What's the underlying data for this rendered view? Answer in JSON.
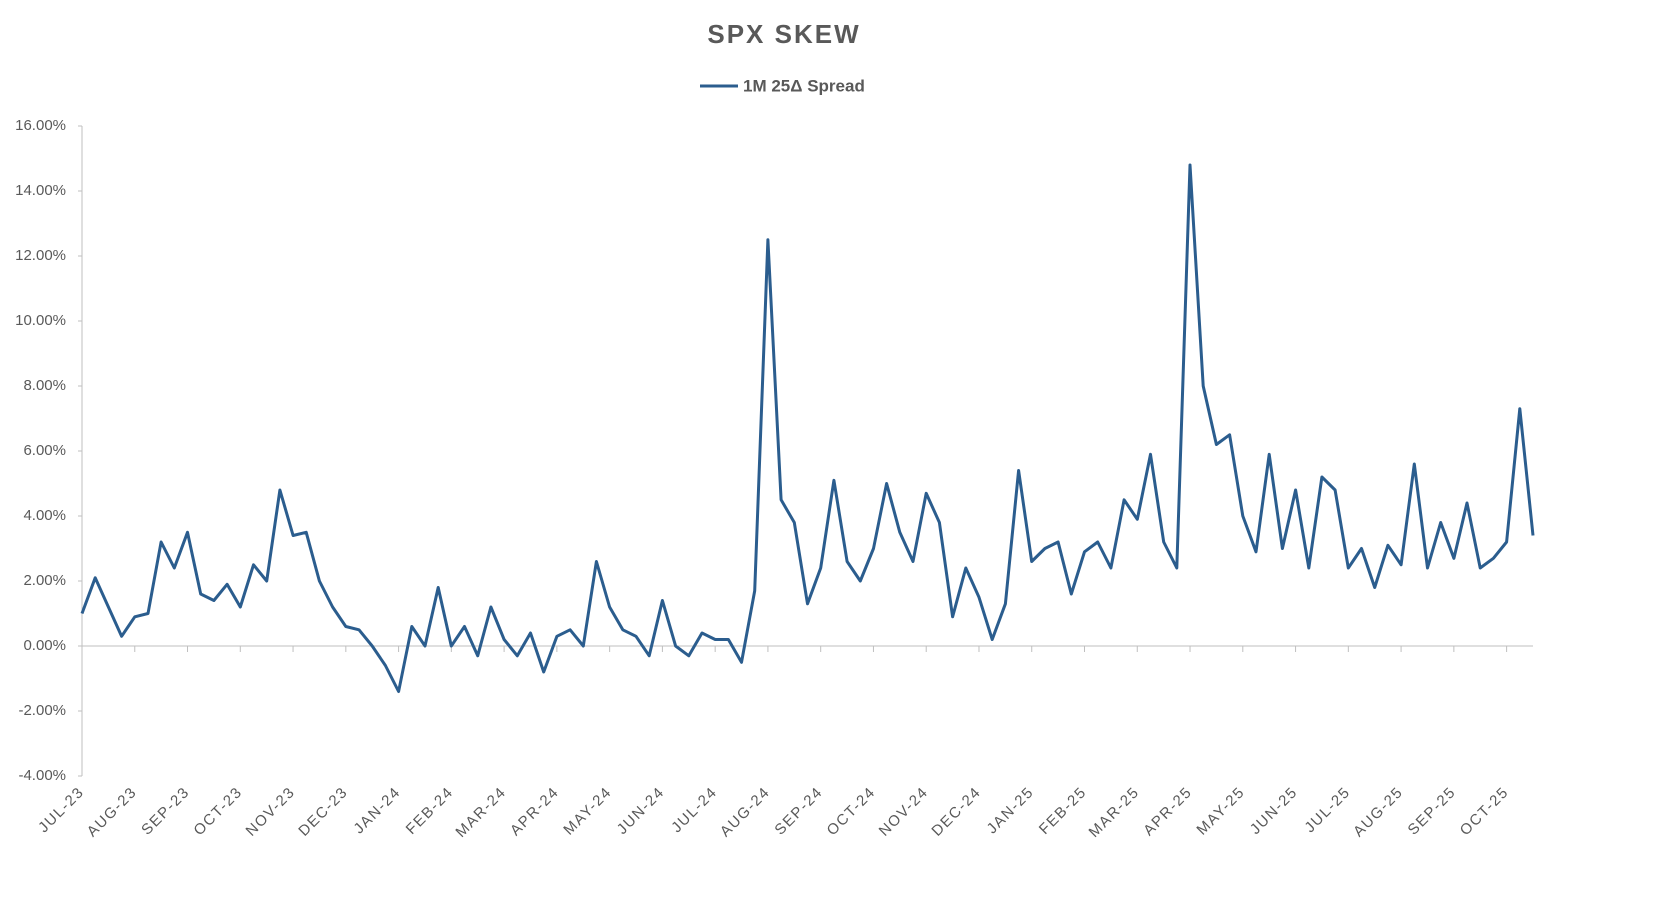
{
  "chart_data": {
    "type": "line",
    "title": "SPX SKEW",
    "categories": [
      "JUL-23",
      null,
      null,
      null,
      "AUG-23",
      null,
      null,
      null,
      "SEP-23",
      null,
      null,
      null,
      "OCT-23",
      null,
      null,
      null,
      "NOV-23",
      null,
      null,
      null,
      "DEC-23",
      null,
      null,
      null,
      "JAN-24",
      null,
      null,
      null,
      "FEB-24",
      null,
      null,
      null,
      "MAR-24",
      null,
      null,
      null,
      "APR-24",
      null,
      null,
      null,
      "MAY-24",
      null,
      null,
      null,
      "JUN-24",
      null,
      null,
      null,
      "JUL-24",
      null,
      null,
      null,
      "AUG-24",
      null,
      null,
      null,
      "SEP-24",
      null,
      null,
      null,
      "OCT-24",
      null,
      null,
      null,
      "NOV-24",
      null,
      null,
      null,
      "DEC-24",
      null,
      null,
      null,
      "JAN-25",
      null,
      null,
      null,
      "FEB-25",
      null,
      null,
      null,
      "MAR-25",
      null,
      null,
      null,
      "APR-25",
      null,
      null,
      null,
      "MAY-25",
      null,
      null,
      null,
      "JUN-25",
      null,
      null,
      null,
      "JUL-25",
      null,
      null,
      null,
      "AUG-25",
      null,
      null,
      null,
      "SEP-25",
      null,
      null,
      null,
      "OCT-25",
      null,
      null
    ],
    "series": [
      {
        "name": "1M 25Δ Spread",
        "color": "#2b5d8e",
        "values": [
          1.0,
          2.1,
          1.2,
          0.3,
          0.9,
          1.0,
          3.2,
          2.4,
          3.5,
          1.6,
          1.4,
          1.9,
          1.2,
          2.5,
          2.0,
          4.8,
          3.4,
          3.5,
          2.0,
          1.2,
          0.6,
          0.5,
          0.0,
          -0.6,
          -1.4,
          0.6,
          0.0,
          1.8,
          0.0,
          0.6,
          -0.3,
          1.2,
          0.2,
          -0.3,
          0.4,
          -0.8,
          0.3,
          0.5,
          0.0,
          2.6,
          1.2,
          0.5,
          0.3,
          -0.3,
          1.4,
          0.0,
          -0.3,
          0.4,
          0.2,
          0.2,
          -0.5,
          1.7,
          12.5,
          4.5,
          3.8,
          1.3,
          2.4,
          5.1,
          2.6,
          2.0,
          3.0,
          5.0,
          3.5,
          2.6,
          4.7,
          3.8,
          0.9,
          2.4,
          1.5,
          0.2,
          1.3,
          5.4,
          2.6,
          3.0,
          3.2,
          1.6,
          2.9,
          3.2,
          2.4,
          4.5,
          3.9,
          5.9,
          3.2,
          2.4,
          14.8,
          8.0,
          6.2,
          6.5,
          4.0,
          2.9,
          5.9,
          3.0,
          4.8,
          2.4,
          5.2,
          4.8,
          2.4,
          3.0,
          1.8,
          3.1,
          2.5,
          5.6,
          2.4,
          3.8,
          2.7,
          4.4,
          2.4,
          2.7,
          3.2,
          7.3,
          3.4
        ]
      }
    ],
    "ylim": [
      -4,
      16
    ],
    "yticks": [
      {
        "value": -4,
        "label": "-4.00%"
      },
      {
        "value": -2,
        "label": "-2.00%"
      },
      {
        "value": 0,
        "label": "0.00%"
      },
      {
        "value": 2,
        "label": "2.00%"
      },
      {
        "value": 4,
        "label": "4.00%"
      },
      {
        "value": 6,
        "label": "6.00%"
      },
      {
        "value": 8,
        "label": "8.00%"
      },
      {
        "value": 10,
        "label": "10.00%"
      },
      {
        "value": 12,
        "label": "12.00%"
      },
      {
        "value": 14,
        "label": "14.00%"
      },
      {
        "value": 16,
        "label": "16.00%"
      }
    ],
    "grid": false,
    "legend": "top"
  }
}
